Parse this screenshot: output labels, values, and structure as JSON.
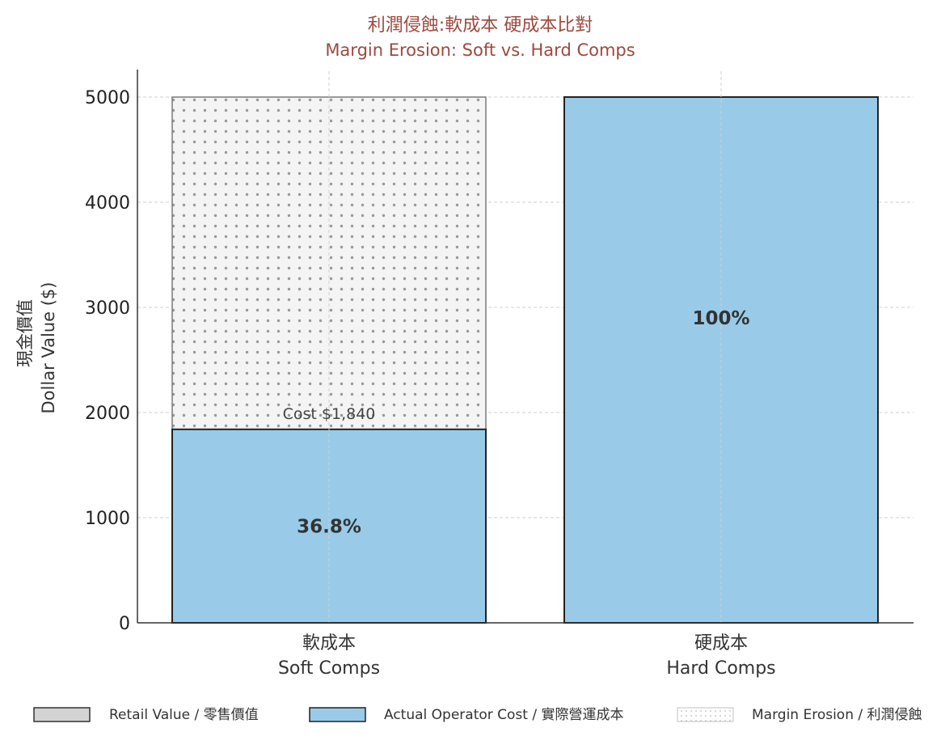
{
  "chart_data": {
    "type": "bar",
    "title": "利潤侵蝕:軟成本 硬成本比對",
    "subtitle": "Margin Erosion: Soft vs. Hard Comps",
    "ylabel_zh": "現金價值",
    "ylabel_en": "Dollar Value ($)",
    "ylim": [
      0,
      5000
    ],
    "yticks": [
      0,
      1000,
      2000,
      3000,
      4000,
      5000
    ],
    "grid": true,
    "categories": [
      {
        "zh": "軟成本",
        "en": "Soft Comps"
      },
      {
        "zh": "硬成本",
        "en": "Hard Comps"
      }
    ],
    "series": [
      {
        "name": "Retail Value / 零售價值",
        "values": [
          5000,
          5000
        ]
      },
      {
        "name": "Actual Operator Cost / 實際營運成本",
        "values": [
          1840,
          5000
        ]
      },
      {
        "name": "Margin Erosion / 利潤侵蝕",
        "values": [
          3160,
          0
        ]
      }
    ],
    "data_labels": [
      "36.8%",
      "100%"
    ],
    "annotations": [
      {
        "category": 0,
        "value": 1840,
        "text": "Cost $1,840"
      }
    ],
    "legend": {
      "position": "bottom"
    },
    "colors": {
      "retail": "#d3d3d3",
      "cost": "#99cbe8",
      "erosion_fill": "#f4f4f4",
      "erosion_dots": "#9a9a9a",
      "title": "#9c4a3e"
    }
  }
}
